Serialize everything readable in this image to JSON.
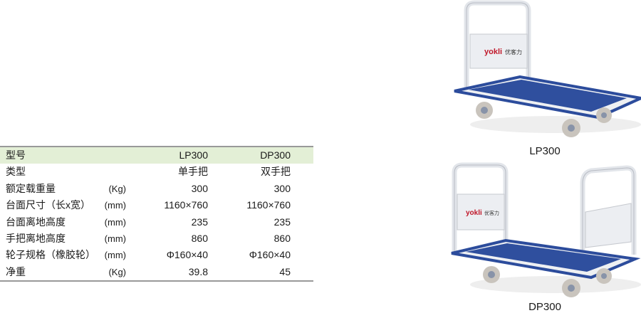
{
  "table": {
    "header": {
      "label": "型号",
      "unit": "",
      "lp": "LP300",
      "dp": "DP300"
    },
    "rows": [
      {
        "label": "类型",
        "unit": "",
        "lp": "单手把",
        "dp": "双手把"
      },
      {
        "label": "额定载重量",
        "unit": "(Kg)",
        "lp": "300",
        "dp": "300"
      },
      {
        "label": "台面尺寸（长x宽）",
        "unit": "(mm)",
        "lp": "1160×760",
        "dp": "1160×760"
      },
      {
        "label": "台面离地高度",
        "unit": "(mm)",
        "lp": "235",
        "dp": "235"
      },
      {
        "label": "手把离地高度",
        "unit": "(mm)",
        "lp": "860",
        "dp": "860"
      },
      {
        "label": "轮子规格（橡胶轮）",
        "unit": "(mm)",
        "lp": "Φ160×40",
        "dp": "Φ160×40"
      },
      {
        "label": "净重",
        "unit": "(Kg)",
        "lp": "39.8",
        "dp": "45"
      }
    ]
  },
  "products": [
    {
      "caption": "LP300",
      "logo": "yokli优客力"
    },
    {
      "caption": "DP300",
      "logo": "yokli优客力"
    }
  ],
  "colors": {
    "header_bg": "#e3efd6",
    "deck": "#2f4f9e",
    "frame": "#e8ebef"
  }
}
